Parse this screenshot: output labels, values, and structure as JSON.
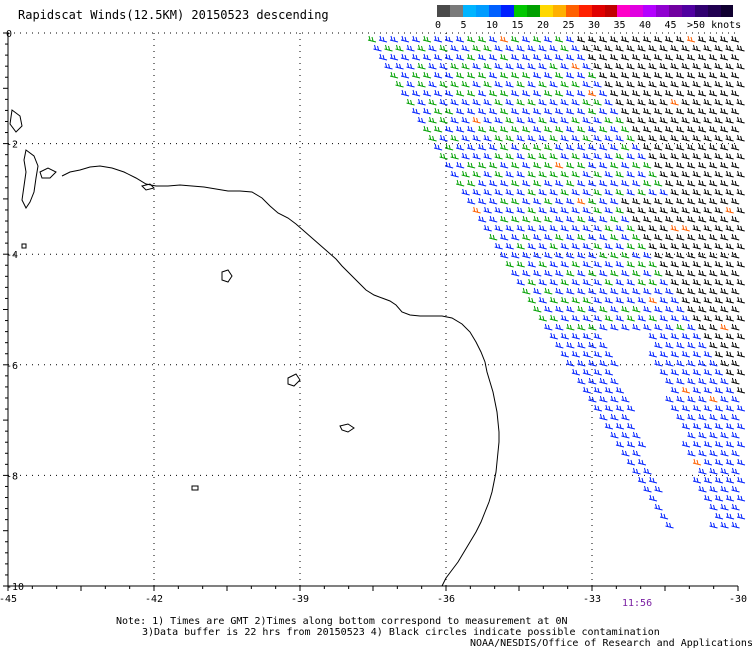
{
  "title": "Rapidscat Winds(12.5KM) 20150523 descending",
  "legend": {
    "colors": [
      "#4a4a4a",
      "#7a7a7a",
      "#00b4ff",
      "#009cff",
      "#0060ff",
      "#0020ff",
      "#00c800",
      "#00a000",
      "#ffd800",
      "#ffb000",
      "#ff6000",
      "#ff2000",
      "#e00000",
      "#c00000",
      "#ff00c8",
      "#e000e0",
      "#b400ff",
      "#9000d0",
      "#7000a0",
      "#5000a0",
      "#300070",
      "#200050",
      "#100030"
    ],
    "labels": [
      "0",
      "5",
      "10",
      "15",
      "20",
      "25",
      "30",
      "35",
      "40",
      "45",
      ">50 knots"
    ]
  },
  "axes": {
    "lat_labels": [
      "0",
      "-2",
      "-4",
      "-6",
      "-8",
      "-10"
    ],
    "lon_labels": [
      "-45",
      "-42",
      "-39",
      "-36",
      "-33",
      "-30"
    ]
  },
  "time_label": "11:56",
  "notes": {
    "line1": "Note: 1) Times are GMT 2)Times along bottom correspond to measurement at 0N",
    "line2": "3)Data buffer is 22 hrs from 20150523 4) Black circles indicate possible contamination",
    "credit": "NOAA/NESDIS/Office of Research and Applications"
  },
  "map_colors": {
    "coast": "#000000",
    "grid": "#000000"
  }
}
